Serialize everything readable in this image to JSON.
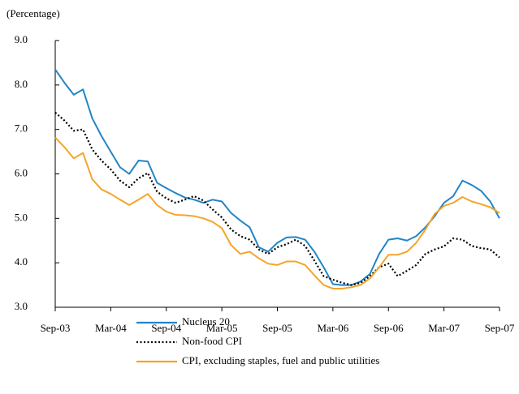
{
  "chart_data": {
    "type": "line",
    "y_label": "(Percentage)",
    "categories": [
      "Sep-03",
      null,
      null,
      null,
      null,
      null,
      "Mar-04",
      null,
      null,
      null,
      null,
      null,
      "Sep-04",
      null,
      null,
      null,
      null,
      null,
      "Mar-05",
      null,
      null,
      null,
      null,
      null,
      "Sep-05",
      null,
      null,
      null,
      null,
      null,
      "Mar-06",
      null,
      null,
      null,
      null,
      null,
      "Sep-06",
      null,
      null,
      null,
      null,
      null,
      "Mar-07",
      null,
      null,
      null,
      null,
      null,
      "Sep-07"
    ],
    "ylim": [
      3,
      9
    ],
    "yticks": [
      {
        "value": 3,
        "label": "3.0"
      },
      {
        "value": 4,
        "label": "4.0"
      },
      {
        "value": 5,
        "label": "5.0"
      },
      {
        "value": 6,
        "label": "6.0"
      },
      {
        "value": 7,
        "label": "7.0"
      },
      {
        "value": 8,
        "label": "8.0"
      },
      {
        "value": 9,
        "label": "9.0"
      }
    ],
    "grid": false,
    "legend": "bottom",
    "series": [
      {
        "name": "Nucleus 20",
        "color": "#2385c5",
        "style": "solid",
        "values": [
          8.35,
          8.05,
          7.78,
          7.9,
          7.25,
          6.85,
          6.5,
          6.15,
          6.0,
          6.3,
          6.28,
          5.8,
          5.68,
          5.57,
          5.47,
          5.42,
          5.35,
          5.42,
          5.38,
          5.12,
          4.95,
          4.8,
          4.35,
          4.25,
          4.45,
          4.57,
          4.58,
          4.52,
          4.25,
          3.9,
          3.52,
          3.5,
          3.5,
          3.58,
          3.75,
          4.2,
          4.52,
          4.55,
          4.5,
          4.6,
          4.8,
          5.05,
          5.35,
          5.5,
          5.85,
          5.75,
          5.62,
          5.38,
          5.0
        ]
      },
      {
        "name": "Non-food CPI",
        "color": "#000000",
        "style": "dotted",
        "values": [
          7.38,
          7.2,
          6.97,
          7.0,
          6.55,
          6.3,
          6.1,
          5.85,
          5.7,
          5.9,
          6.02,
          5.6,
          5.45,
          5.35,
          5.42,
          5.5,
          5.4,
          5.2,
          5.02,
          4.75,
          4.6,
          4.52,
          4.3,
          4.2,
          4.35,
          4.42,
          4.52,
          4.38,
          4.05,
          3.7,
          3.62,
          3.55,
          3.5,
          3.55,
          3.7,
          3.9,
          3.98,
          3.7,
          3.82,
          3.95,
          4.2,
          4.3,
          4.37,
          4.55,
          4.52,
          4.38,
          4.33,
          4.3,
          4.12
        ]
      },
      {
        "name": "CPI, excluding staples, fuel and public utilities",
        "color": "#f5a42a",
        "style": "solid",
        "values": [
          6.82,
          6.6,
          6.35,
          6.47,
          5.88,
          5.65,
          5.55,
          5.42,
          5.3,
          5.42,
          5.55,
          5.3,
          5.15,
          5.08,
          5.07,
          5.05,
          5.0,
          4.92,
          4.78,
          4.4,
          4.2,
          4.25,
          4.1,
          3.98,
          3.95,
          4.03,
          4.03,
          3.95,
          3.72,
          3.5,
          3.42,
          3.42,
          3.45,
          3.5,
          3.65,
          3.9,
          4.18,
          4.18,
          4.25,
          4.45,
          4.75,
          5.1,
          5.28,
          5.35,
          5.48,
          5.38,
          5.32,
          5.25,
          5.12
        ]
      }
    ]
  }
}
